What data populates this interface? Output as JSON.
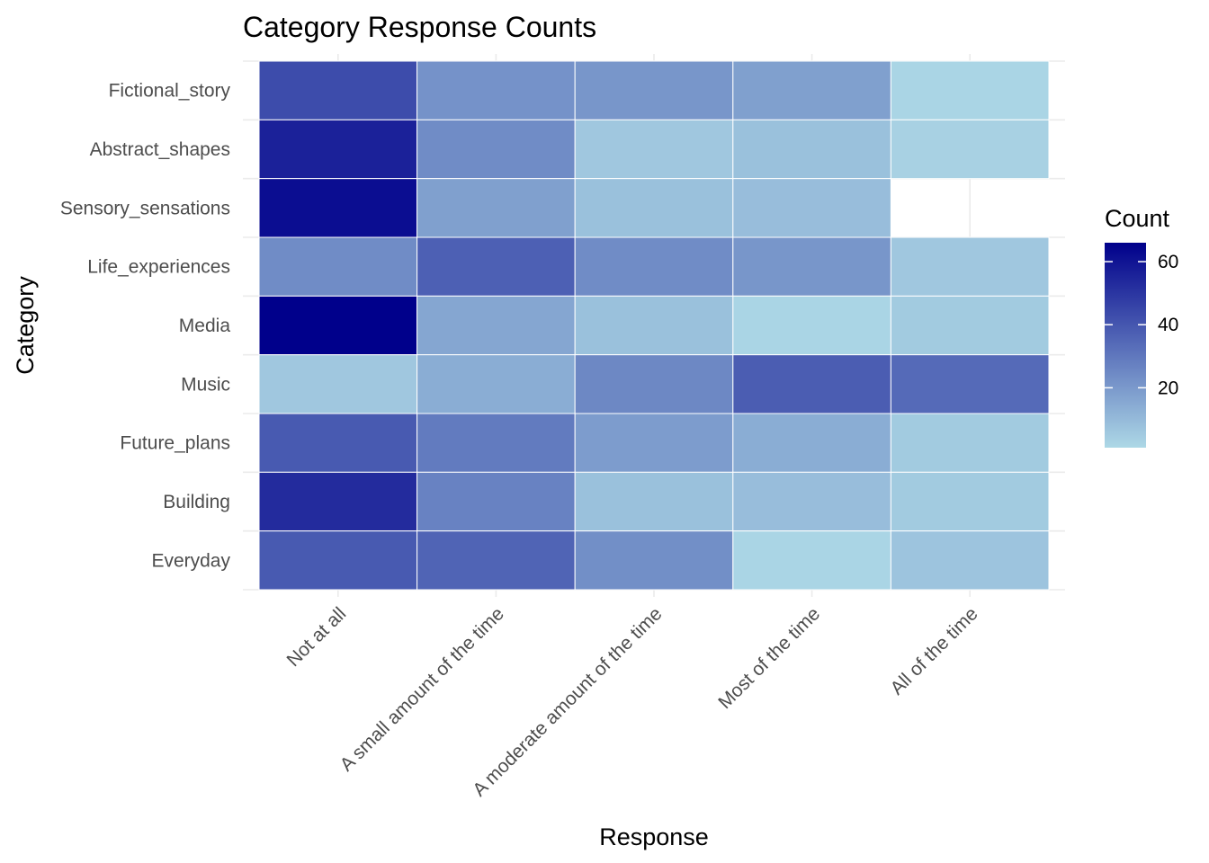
{
  "chart_data": {
    "type": "heatmap",
    "title": "Category Response Counts",
    "xlabel": "Response",
    "ylabel": "Category",
    "x_categories": [
      "Not at all",
      "A small amount of the time",
      "A moderate amount of the time",
      "Most of the time",
      "All of the time"
    ],
    "y_categories": [
      "Fictional_story",
      "Abstract_shapes",
      "Sensory_sensations",
      "Life_experiences",
      "Media",
      "Music",
      "Future_plans",
      "Building",
      "Everyday"
    ],
    "values": [
      [
        43,
        22,
        21,
        18,
        2
      ],
      [
        56,
        24,
        6,
        8,
        3
      ],
      [
        62,
        18,
        8,
        9,
        null
      ],
      [
        24,
        37,
        24,
        21,
        6
      ],
      [
        66,
        16,
        8,
        2,
        5
      ],
      [
        6,
        14,
        25,
        38,
        34
      ],
      [
        39,
        29,
        19,
        14,
        5
      ],
      [
        53,
        27,
        8,
        9,
        5
      ],
      [
        39,
        36,
        23,
        2,
        7
      ]
    ],
    "color_scale": {
      "low": "#add8e6",
      "high": "#00008b",
      "min": 1,
      "max": 66
    },
    "legend": {
      "title": "Count",
      "ticks": [
        20,
        40,
        60
      ],
      "position": "right"
    },
    "grid": true
  }
}
